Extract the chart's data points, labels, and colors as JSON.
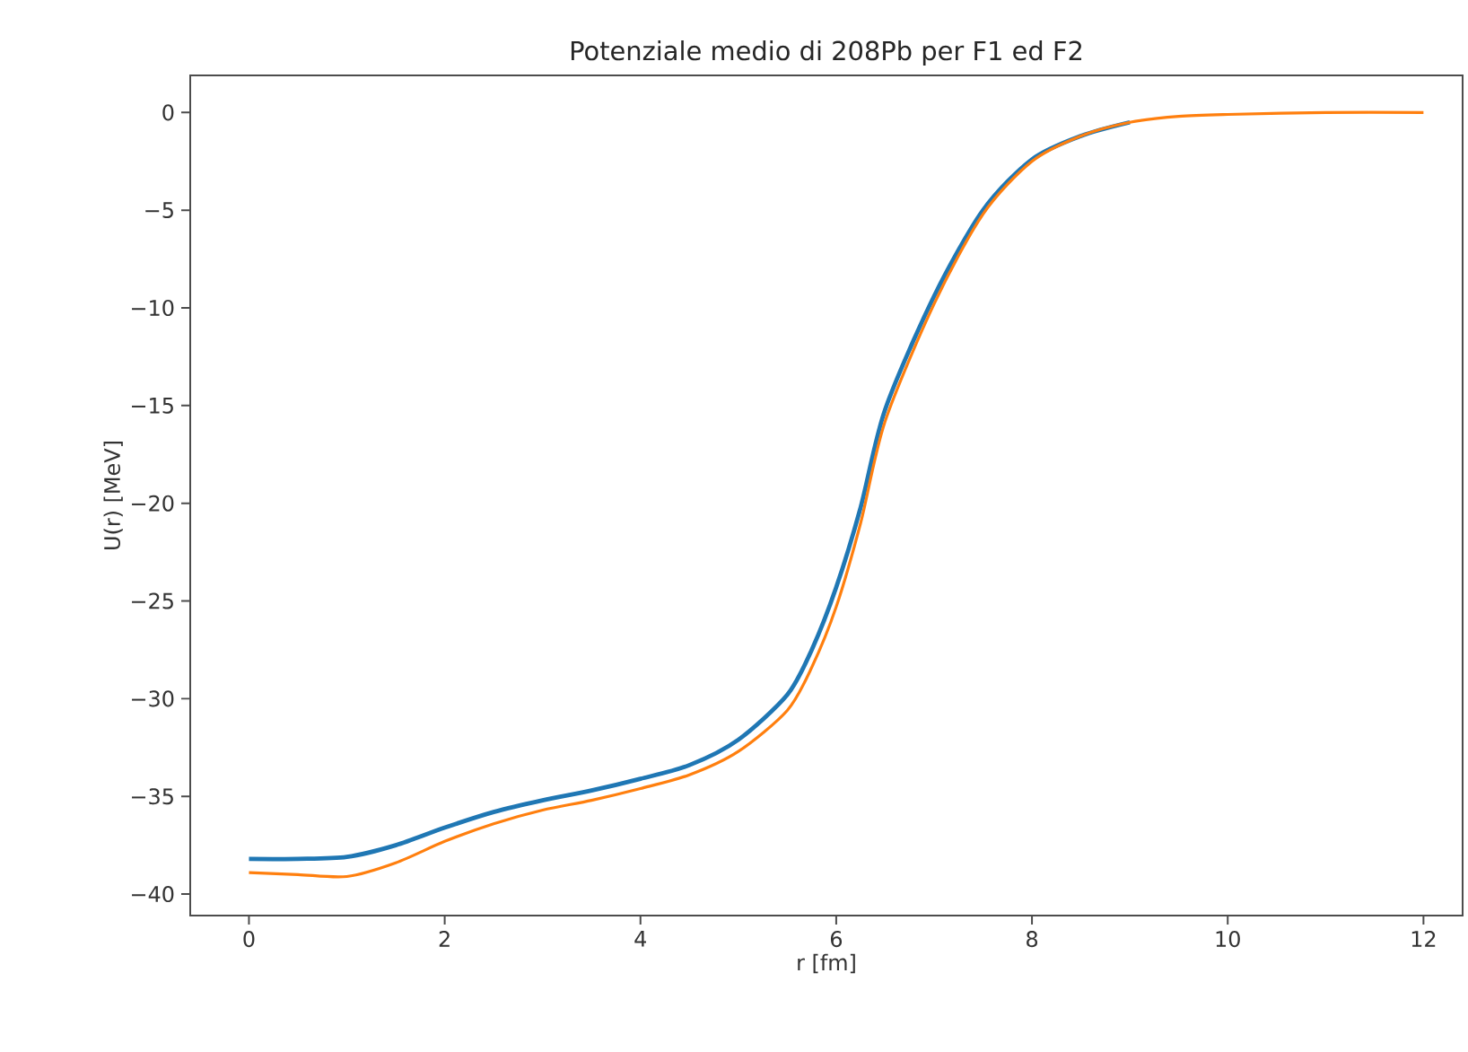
{
  "chart_data": {
    "type": "line",
    "title": "Potenziale medio di 208Pb per F1 ed F2",
    "xlabel": "r [fm]",
    "ylabel": "U(r) [MeV]",
    "xlim": [
      -0.6,
      12.4
    ],
    "ylim": [
      -41.1,
      1.9
    ],
    "xticks": [
      0,
      2,
      4,
      6,
      8,
      10,
      12
    ],
    "yticks": [
      {
        "value": 0,
        "label": "0"
      },
      {
        "value": -5,
        "label": "−5"
      },
      {
        "value": -10,
        "label": "−10"
      },
      {
        "value": -15,
        "label": "−15"
      },
      {
        "value": -20,
        "label": "−20"
      },
      {
        "value": -25,
        "label": "−25"
      },
      {
        "value": -30,
        "label": "−30"
      },
      {
        "value": -35,
        "label": "−35"
      },
      {
        "value": -40,
        "label": "−40"
      }
    ],
    "x": [
      0,
      0.5,
      1,
      1.5,
      2,
      2.5,
      3,
      3.5,
      4,
      4.5,
      5,
      5.5,
      5.75,
      6,
      6.25,
      6.5,
      7,
      7.5,
      8,
      8.5,
      9,
      9.5,
      10,
      11,
      12
    ],
    "series": [
      {
        "color": "#1f77b4",
        "values": [
          -38.2,
          -38.2,
          -38.1,
          -37.5,
          -36.6,
          -35.8,
          -35.2,
          -34.7,
          -34.1,
          -33.4,
          -32.1,
          -29.8,
          -27.5,
          -24.3,
          -20.2,
          -15.2,
          -9.4,
          -5,
          -2.4,
          -1.2,
          -0.5,
          null,
          null,
          null,
          null
        ]
      },
      {
        "color": "#ff7f0e",
        "values": [
          -38.9,
          -39.0,
          -39.1,
          -38.4,
          -37.3,
          -36.4,
          -35.7,
          -35.2,
          -34.6,
          -33.9,
          -32.7,
          -30.6,
          -28.4,
          -25.3,
          -21,
          -15.8,
          -9.8,
          -5.2,
          -2.5,
          -1.2,
          -0.5,
          -0.2,
          -0.1,
          0,
          0
        ]
      }
    ]
  }
}
